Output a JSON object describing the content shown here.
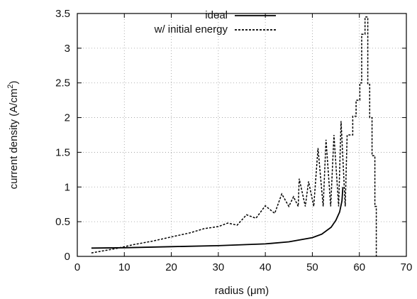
{
  "chart_data": {
    "type": "line",
    "xlabel": "radius (μm)",
    "ylabel": "current density (A/cm2)",
    "xlim": [
      0,
      70
    ],
    "ylim": [
      0,
      3.5
    ],
    "xticks": [
      0,
      10,
      20,
      30,
      40,
      50,
      60,
      70
    ],
    "yticks": [
      0,
      0.5,
      1,
      1.5,
      2,
      2.5,
      3,
      3.5
    ],
    "xtick_labels": [
      "0",
      "10",
      "20",
      "30",
      "40",
      "50",
      "60",
      "70"
    ],
    "ytick_labels": [
      "0",
      "0.5",
      "1",
      "1.5",
      "2",
      "2.5",
      "3",
      "3.5"
    ],
    "grid": true,
    "legend_position": "top-center",
    "series": [
      {
        "name": "ideal",
        "style": "solid",
        "points": [
          [
            3,
            0.12
          ],
          [
            10,
            0.125
          ],
          [
            20,
            0.14
          ],
          [
            30,
            0.155
          ],
          [
            40,
            0.18
          ],
          [
            45,
            0.21
          ],
          [
            50,
            0.27
          ],
          [
            52,
            0.32
          ],
          [
            54,
            0.42
          ],
          [
            55,
            0.52
          ],
          [
            55.8,
            0.64
          ],
          [
            56.3,
            0.8
          ],
          [
            56.5,
            1.0
          ]
        ]
      },
      {
        "name": "w/ initial energy",
        "style": "dashed",
        "points": [
          [
            3,
            0.05
          ],
          [
            8,
            0.11
          ],
          [
            12,
            0.17
          ],
          [
            16,
            0.22
          ],
          [
            20,
            0.28
          ],
          [
            24,
            0.34
          ],
          [
            27,
            0.4
          ],
          [
            30,
            0.43
          ],
          [
            32,
            0.48
          ],
          [
            34,
            0.45
          ],
          [
            36,
            0.6
          ],
          [
            38,
            0.55
          ],
          [
            40,
            0.73
          ],
          [
            42,
            0.62
          ],
          [
            43.5,
            0.9
          ],
          [
            45,
            0.72
          ],
          [
            46,
            0.86
          ],
          [
            47,
            0.72
          ],
          [
            47.2,
            1.12
          ],
          [
            48.5,
            0.72
          ],
          [
            49.2,
            1.08
          ],
          [
            50.3,
            0.72
          ],
          [
            51.2,
            1.56
          ],
          [
            52.3,
            0.72
          ],
          [
            52.9,
            1.68
          ],
          [
            53.9,
            0.72
          ],
          [
            54.6,
            1.75
          ],
          [
            55.6,
            0.72
          ],
          [
            56.1,
            1.95
          ],
          [
            57,
            0.72
          ],
          [
            57.4,
            1.75
          ],
          [
            58.6,
            1.75
          ],
          [
            58.6,
            2.02
          ],
          [
            59.3,
            2.02
          ],
          [
            59.3,
            2.25
          ],
          [
            60.1,
            2.25
          ],
          [
            60.1,
            2.5
          ],
          [
            60.5,
            2.5
          ],
          [
            60.5,
            3.2
          ],
          [
            61.2,
            3.2
          ],
          [
            61.2,
            3.45
          ],
          [
            61.8,
            3.45
          ],
          [
            61.8,
            2.48
          ],
          [
            62.2,
            2.48
          ],
          [
            62.2,
            2.0
          ],
          [
            62.7,
            2.0
          ],
          [
            62.7,
            1.45
          ],
          [
            63.3,
            1.45
          ],
          [
            63.3,
            0.72
          ],
          [
            63.6,
            0.72
          ],
          [
            63.6,
            0.0
          ]
        ]
      }
    ]
  }
}
